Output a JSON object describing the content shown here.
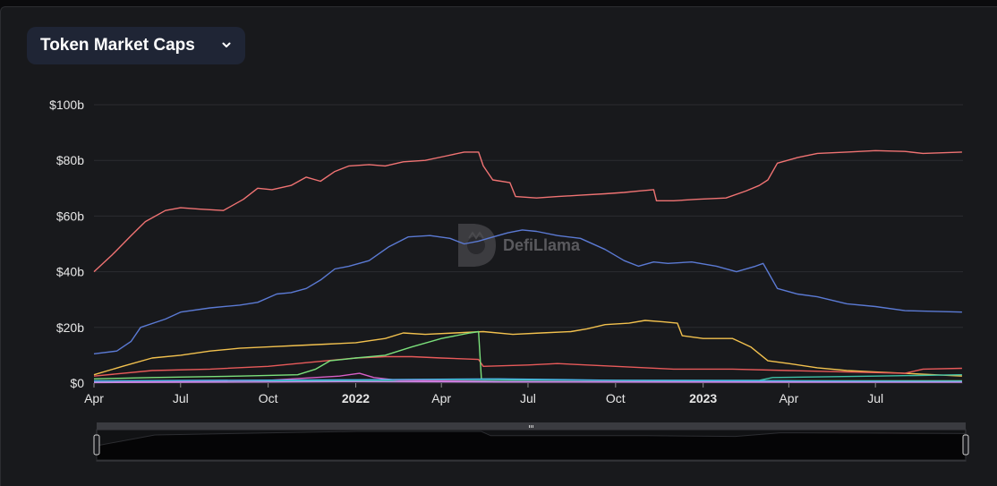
{
  "panel": {
    "dropdown_label": "Token Market Caps"
  },
  "watermark": "DefiLlama",
  "chart_data": {
    "type": "line",
    "title": "Token Market Caps",
    "y_axis": {
      "min": 0,
      "max": 100,
      "unit": "$b",
      "ticks": [
        {
          "value": 0,
          "label": "$0"
        },
        {
          "value": 20,
          "label": "$20b"
        },
        {
          "value": 40,
          "label": "$40b"
        },
        {
          "value": 60,
          "label": "$60b"
        },
        {
          "value": 80,
          "label": "$80b"
        },
        {
          "value": 100,
          "label": "$100b"
        }
      ]
    },
    "x_axis": {
      "start": "2021-04-01",
      "end": "2023-10-01",
      "ticks": [
        {
          "date": "2021-04-01",
          "label": "Apr",
          "bold": false
        },
        {
          "date": "2021-07-01",
          "label": "Jul",
          "bold": false
        },
        {
          "date": "2021-10-01",
          "label": "Oct",
          "bold": false
        },
        {
          "date": "2022-01-01",
          "label": "2022",
          "bold": true
        },
        {
          "date": "2022-04-01",
          "label": "Apr",
          "bold": false
        },
        {
          "date": "2022-07-01",
          "label": "Jul",
          "bold": false
        },
        {
          "date": "2022-10-01",
          "label": "Oct",
          "bold": false
        },
        {
          "date": "2023-01-01",
          "label": "2023",
          "bold": true
        },
        {
          "date": "2023-04-01",
          "label": "Apr",
          "bold": false
        },
        {
          "date": "2023-07-01",
          "label": "Jul",
          "bold": false
        }
      ]
    },
    "grid": true,
    "legend": "none",
    "series": [
      {
        "color": "#f07373",
        "points": [
          [
            "2021-04-01",
            40
          ],
          [
            "2021-04-20",
            46
          ],
          [
            "2021-05-10",
            53
          ],
          [
            "2021-05-25",
            58
          ],
          [
            "2021-06-15",
            62
          ],
          [
            "2021-07-01",
            63
          ],
          [
            "2021-07-20",
            62.5
          ],
          [
            "2021-08-15",
            62
          ],
          [
            "2021-09-05",
            66
          ],
          [
            "2021-09-20",
            70
          ],
          [
            "2021-10-05",
            69.5
          ],
          [
            "2021-10-25",
            71
          ],
          [
            "2021-11-10",
            74
          ],
          [
            "2021-11-25",
            72.5
          ],
          [
            "2021-12-10",
            76
          ],
          [
            "2021-12-25",
            78
          ],
          [
            "2022-01-15",
            78.5
          ],
          [
            "2022-02-01",
            78
          ],
          [
            "2022-02-20",
            79.5
          ],
          [
            "2022-03-15",
            80
          ],
          [
            "2022-04-05",
            81.5
          ],
          [
            "2022-04-25",
            83
          ],
          [
            "2022-05-10",
            83
          ],
          [
            "2022-05-15",
            78
          ],
          [
            "2022-05-25",
            73
          ],
          [
            "2022-06-12",
            72
          ],
          [
            "2022-06-18",
            67
          ],
          [
            "2022-07-10",
            66.5
          ],
          [
            "2022-08-01",
            67
          ],
          [
            "2022-08-25",
            67.5
          ],
          [
            "2022-09-20",
            68
          ],
          [
            "2022-10-10",
            68.5
          ],
          [
            "2022-10-25",
            69
          ],
          [
            "2022-11-10",
            69.5
          ],
          [
            "2022-11-13",
            65.5
          ],
          [
            "2022-12-01",
            65.5
          ],
          [
            "2022-12-25",
            66
          ],
          [
            "2023-01-25",
            66.5
          ],
          [
            "2023-02-15",
            69
          ],
          [
            "2023-03-01",
            71
          ],
          [
            "2023-03-10",
            73
          ],
          [
            "2023-03-20",
            79
          ],
          [
            "2023-04-10",
            81
          ],
          [
            "2023-05-01",
            82.5
          ],
          [
            "2023-06-01",
            83
          ],
          [
            "2023-07-01",
            83.5
          ],
          [
            "2023-08-01",
            83.2
          ],
          [
            "2023-08-20",
            82.5
          ],
          [
            "2023-09-30",
            83
          ]
        ]
      },
      {
        "color": "#5b7ad4",
        "points": [
          [
            "2021-04-01",
            10.5
          ],
          [
            "2021-04-25",
            11.5
          ],
          [
            "2021-05-10",
            15
          ],
          [
            "2021-05-20",
            20
          ],
          [
            "2021-06-15",
            23
          ],
          [
            "2021-07-01",
            25.5
          ],
          [
            "2021-08-01",
            27
          ],
          [
            "2021-09-01",
            28
          ],
          [
            "2021-09-20",
            29
          ],
          [
            "2021-10-10",
            32
          ],
          [
            "2021-10-25",
            32.5
          ],
          [
            "2021-11-10",
            34
          ],
          [
            "2021-11-25",
            37
          ],
          [
            "2021-12-10",
            41
          ],
          [
            "2021-12-25",
            42
          ],
          [
            "2022-01-15",
            44
          ],
          [
            "2022-02-05",
            49
          ],
          [
            "2022-02-25",
            52.5
          ],
          [
            "2022-03-20",
            53
          ],
          [
            "2022-04-10",
            52
          ],
          [
            "2022-04-25",
            50
          ],
          [
            "2022-05-10",
            51
          ],
          [
            "2022-05-20",
            52
          ],
          [
            "2022-06-10",
            54
          ],
          [
            "2022-06-25",
            55
          ],
          [
            "2022-07-10",
            54.5
          ],
          [
            "2022-08-01",
            53
          ],
          [
            "2022-08-25",
            52
          ],
          [
            "2022-09-20",
            48
          ],
          [
            "2022-10-10",
            44
          ],
          [
            "2022-10-25",
            42
          ],
          [
            "2022-11-10",
            43.5
          ],
          [
            "2022-11-25",
            43
          ],
          [
            "2022-12-20",
            43.5
          ],
          [
            "2023-01-15",
            42
          ],
          [
            "2023-02-05",
            40
          ],
          [
            "2023-02-25",
            42
          ],
          [
            "2023-03-05",
            43
          ],
          [
            "2023-03-10",
            40
          ],
          [
            "2023-03-20",
            34
          ],
          [
            "2023-04-10",
            32
          ],
          [
            "2023-05-01",
            31
          ],
          [
            "2023-06-01",
            28.5
          ],
          [
            "2023-07-01",
            27.5
          ],
          [
            "2023-08-01",
            26
          ],
          [
            "2023-09-30",
            25.5
          ]
        ]
      },
      {
        "color": "#f2c14e",
        "points": [
          [
            "2021-04-01",
            3
          ],
          [
            "2021-05-01",
            6
          ],
          [
            "2021-06-01",
            9
          ],
          [
            "2021-07-01",
            10
          ],
          [
            "2021-08-01",
            11.5
          ],
          [
            "2021-09-01",
            12.5
          ],
          [
            "2021-10-01",
            13
          ],
          [
            "2021-11-01",
            13.5
          ],
          [
            "2021-12-01",
            14
          ],
          [
            "2022-01-01",
            14.5
          ],
          [
            "2022-02-01",
            16
          ],
          [
            "2022-02-20",
            18
          ],
          [
            "2022-03-15",
            17.5
          ],
          [
            "2022-04-15",
            18
          ],
          [
            "2022-05-15",
            18.5
          ],
          [
            "2022-06-15",
            17.5
          ],
          [
            "2022-07-15",
            18
          ],
          [
            "2022-08-15",
            18.5
          ],
          [
            "2022-09-01",
            19.5
          ],
          [
            "2022-09-20",
            21
          ],
          [
            "2022-10-15",
            21.5
          ],
          [
            "2022-11-01",
            22.5
          ],
          [
            "2022-11-20",
            22
          ],
          [
            "2022-12-05",
            21.5
          ],
          [
            "2022-12-10",
            17
          ],
          [
            "2023-01-01",
            16
          ],
          [
            "2023-02-01",
            16
          ],
          [
            "2023-02-20",
            13
          ],
          [
            "2023-03-10",
            8
          ],
          [
            "2023-04-01",
            7
          ],
          [
            "2023-05-01",
            5.5
          ],
          [
            "2023-06-01",
            4.5
          ],
          [
            "2023-07-01",
            4
          ],
          [
            "2023-08-01",
            3.5
          ],
          [
            "2023-09-30",
            2.5
          ]
        ]
      },
      {
        "color": "#e85a5a",
        "points": [
          [
            "2021-04-01",
            2.5
          ],
          [
            "2021-06-01",
            4.5
          ],
          [
            "2021-08-01",
            5
          ],
          [
            "2021-10-01",
            6
          ],
          [
            "2021-12-01",
            8
          ],
          [
            "2022-01-01",
            9
          ],
          [
            "2022-02-01",
            9.5
          ],
          [
            "2022-03-01",
            9.5
          ],
          [
            "2022-04-01",
            9
          ],
          [
            "2022-05-10",
            8.5
          ],
          [
            "2022-05-15",
            6
          ],
          [
            "2022-07-01",
            6.5
          ],
          [
            "2022-08-01",
            7
          ],
          [
            "2022-10-01",
            6
          ],
          [
            "2022-12-01",
            5
          ],
          [
            "2023-02-01",
            5
          ],
          [
            "2023-04-01",
            4.5
          ],
          [
            "2023-06-01",
            4
          ],
          [
            "2023-08-01",
            3.5
          ],
          [
            "2023-08-20",
            5
          ],
          [
            "2023-09-30",
            5.3
          ]
        ]
      },
      {
        "color": "#7be07b",
        "points": [
          [
            "2021-04-01",
            1.5
          ],
          [
            "2021-06-01",
            2
          ],
          [
            "2021-09-01",
            2.5
          ],
          [
            "2021-11-01",
            3
          ],
          [
            "2021-11-20",
            5
          ],
          [
            "2021-12-05",
            8
          ],
          [
            "2022-01-01",
            9
          ],
          [
            "2022-02-01",
            10
          ],
          [
            "2022-03-01",
            13
          ],
          [
            "2022-04-01",
            16
          ],
          [
            "2022-05-01",
            18
          ],
          [
            "2022-05-10",
            18.5
          ],
          [
            "2022-05-13",
            1.5
          ],
          [
            "2022-09-01",
            1
          ],
          [
            "2023-01-01",
            0.8
          ],
          [
            "2023-09-30",
            0.8
          ]
        ]
      },
      {
        "color": "#3fc1a6",
        "points": [
          [
            "2021-04-01",
            0.5
          ],
          [
            "2021-10-01",
            0.8
          ],
          [
            "2022-05-01",
            1
          ],
          [
            "2022-12-01",
            1
          ],
          [
            "2023-03-01",
            1
          ],
          [
            "2023-03-15",
            2
          ],
          [
            "2023-07-01",
            2.5
          ],
          [
            "2023-09-30",
            3
          ]
        ]
      },
      {
        "color": "#d85fc8",
        "points": [
          [
            "2021-04-01",
            0.3
          ],
          [
            "2021-10-01",
            1
          ],
          [
            "2021-12-15",
            2.5
          ],
          [
            "2022-01-05",
            3.5
          ],
          [
            "2022-01-20",
            2
          ],
          [
            "2022-02-15",
            1
          ],
          [
            "2022-06-01",
            0.5
          ],
          [
            "2023-09-30",
            0.4
          ]
        ]
      },
      {
        "color": "#49b3e8",
        "points": [
          [
            "2021-04-01",
            0.8
          ],
          [
            "2022-01-01",
            1.2
          ],
          [
            "2022-06-01",
            1.5
          ],
          [
            "2022-10-01",
            1
          ],
          [
            "2023-04-01",
            0.8
          ],
          [
            "2023-09-30",
            0.6
          ]
        ]
      },
      {
        "color": "#c98ae8",
        "points": [
          [
            "2021-04-01",
            0.2
          ],
          [
            "2022-01-01",
            0.5
          ],
          [
            "2022-06-01",
            0.4
          ],
          [
            "2023-09-30",
            0.3
          ]
        ]
      }
    ],
    "overview": {
      "values": [
        [
          "2021-04-01",
          20
        ],
        [
          "2021-06-01",
          35
        ],
        [
          "2021-10-01",
          38
        ],
        [
          "2022-01-01",
          42
        ],
        [
          "2022-05-10",
          46
        ],
        [
          "2022-05-20",
          34
        ],
        [
          "2022-11-01",
          34
        ],
        [
          "2023-02-01",
          33
        ],
        [
          "2023-03-20",
          38
        ],
        [
          "2023-09-30",
          37
        ]
      ]
    }
  }
}
